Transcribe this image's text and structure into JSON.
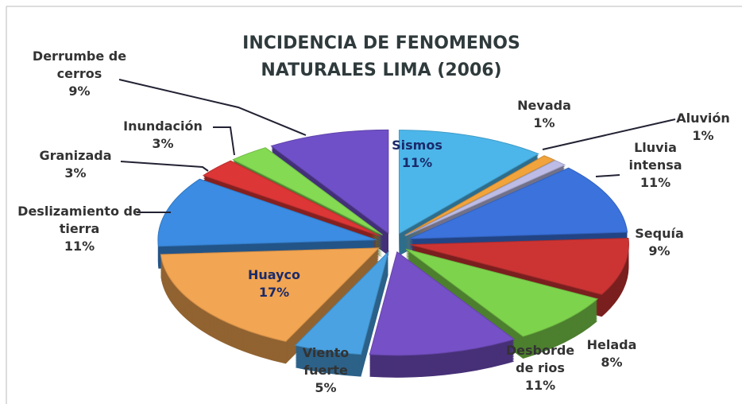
{
  "chart_data": {
    "type": "pie",
    "title": "INCIDENCIA DE FENOMENOS NATURALES LIMA (2006)",
    "categories": [
      "Sismos",
      "Nevada",
      "Aluvión",
      "Lluvia intensa",
      "Sequía",
      "Helada",
      "Desborde de rios",
      "Viento fuerte",
      "Huayco",
      "Deslizamiento de tierra",
      "Granizada",
      "Inundación",
      "Derrumbe de cerros"
    ],
    "values": [
      11,
      1,
      1,
      11,
      9,
      8,
      11,
      5,
      17,
      11,
      3,
      3,
      9
    ],
    "value_labels": [
      "11%",
      "1%",
      "1%",
      "11%",
      "9%",
      "8%",
      "11%",
      "5%",
      "17%",
      "11%",
      "3%",
      "3%",
      "9%"
    ],
    "colors": [
      "#4cb6ea",
      "#f2a43c",
      "#bcbce6",
      "#3b72dc",
      "#cc3434",
      "#7ed34c",
      "#7650c6",
      "#4aa2e2",
      "#f2a552",
      "#3b8ce2",
      "#dc3636",
      "#84da52",
      "#7050c8"
    ]
  }
}
